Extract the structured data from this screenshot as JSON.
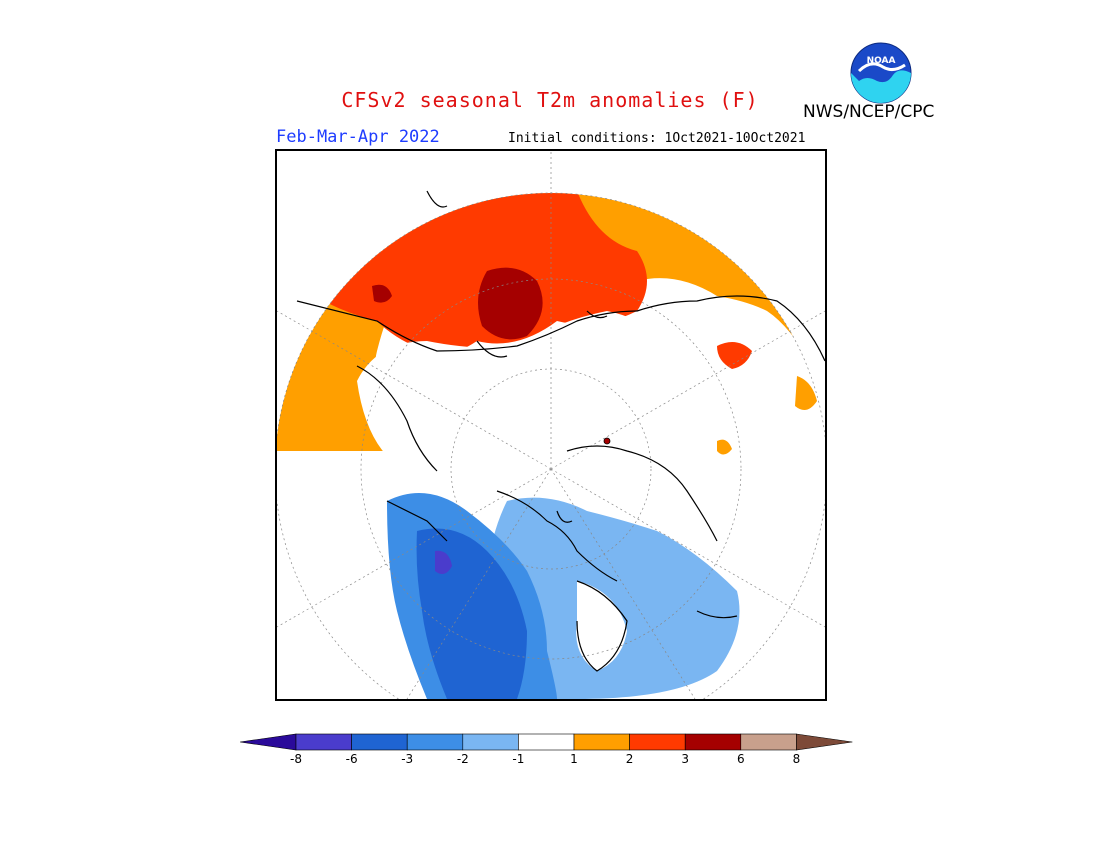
{
  "title": "CFSv2 seasonal T2m anomalies (F)",
  "period": "Feb-Mar-Apr 2022",
  "initial_conditions": "Initial conditions: 1Oct2021-10Oct2021",
  "agency": "NWS/NCEP/CPC",
  "logo_text": "NOAA",
  "colors": {
    "title": "#e01010",
    "period": "#1e3cff",
    "map_border": "#000000",
    "coast": "#000000"
  },
  "legend": {
    "unit": "F",
    "bins": [
      {
        "range": "< -8",
        "color": "#2a0a9a"
      },
      {
        "range": "-8 to -6",
        "color": "#4a3ccc"
      },
      {
        "range": "-6 to -3",
        "color": "#1f64d2"
      },
      {
        "range": "-3 to -2",
        "color": "#3d8ee6"
      },
      {
        "range": "-2 to -1",
        "color": "#7ab6f2"
      },
      {
        "range": "-1 to 1",
        "color": "#ffffff"
      },
      {
        "range": "1 to 2",
        "color": "#ff9f00"
      },
      {
        "range": "2 to 3",
        "color": "#ff3a00"
      },
      {
        "range": "3 to 6",
        "color": "#a50000"
      },
      {
        "range": "6 to 8",
        "color": "#c8a08c"
      },
      {
        "range": "> 8",
        "color": "#7d4a38"
      }
    ],
    "tick_labels": [
      "-8",
      "-6",
      "-3",
      "-2",
      "-1",
      "1",
      "2",
      "3",
      "6",
      "8"
    ]
  }
}
